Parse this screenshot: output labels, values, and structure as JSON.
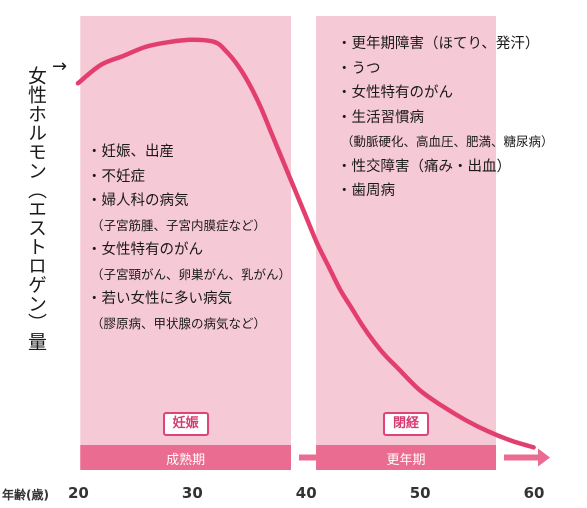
{
  "chart_data": {
    "type": "line",
    "ylabel": "女性ホルモン（エストロゲン）量",
    "xlabel": "年齢(歳)",
    "x_ticks": [
      "20",
      "30",
      "40",
      "50",
      "60"
    ],
    "xlim": [
      20,
      61
    ],
    "ylim": [
      0,
      100
    ],
    "series": [
      {
        "x": [
          20,
          22,
          24,
          26,
          28,
          30,
          32,
          33,
          34,
          35,
          36,
          37,
          38,
          39,
          40,
          41,
          42,
          43,
          44,
          45,
          46,
          47,
          48,
          50,
          52,
          54,
          56,
          58,
          60
        ],
        "y": [
          84,
          88,
          90,
          92,
          93,
          93.5,
          93,
          91,
          88,
          84,
          79,
          73,
          67,
          61,
          55,
          49,
          44,
          39,
          35,
          31,
          27.5,
          24.5,
          22,
          17,
          13.5,
          10.5,
          8,
          6,
          4.5
        ]
      }
    ],
    "shaded_periods": [
      {
        "start": 20.2,
        "end": 38.7,
        "label": "成熟期",
        "badge": "妊娠"
      },
      {
        "start": 40.9,
        "end": 56.7,
        "label": "更年期",
        "badge": "閉経"
      }
    ],
    "colors": {
      "curve": "#e23f6f",
      "shade": "#f6c9d6",
      "band": "#ea6c90",
      "badge_border": "#e0427a"
    }
  },
  "left_list": [
    {
      "text": "・妊娠、出産",
      "kind": "main"
    },
    {
      "text": "・不妊症",
      "kind": "main"
    },
    {
      "text": "・婦人科の病気",
      "kind": "main"
    },
    {
      "text": "（子宮筋腫、子宮内膜症など）",
      "kind": "sub"
    },
    {
      "text": "・女性特有のがん",
      "kind": "main"
    },
    {
      "text": "（子宮頸がん、卵巣がん、乳がん）",
      "kind": "sub"
    },
    {
      "text": "・若い女性に多い病気",
      "kind": "main"
    },
    {
      "text": "（膠原病、甲状腺の病気など）",
      "kind": "sub"
    }
  ],
  "right_list": [
    {
      "text": "・更年期障害（ほてり、発汗）",
      "kind": "main"
    },
    {
      "text": "・うつ",
      "kind": "main"
    },
    {
      "text": "・女性特有のがん",
      "kind": "main"
    },
    {
      "text": "・生活習慣病",
      "kind": "main"
    },
    {
      "text": "（動脈硬化、高血圧、肥満、糖尿病）",
      "kind": "sub"
    },
    {
      "text": "・性交障害（痛み・出血）",
      "kind": "main"
    },
    {
      "text": "・歯周病",
      "kind": "main"
    }
  ],
  "y_arrow": "→"
}
